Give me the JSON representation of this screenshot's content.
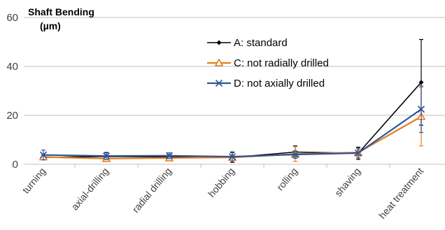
{
  "chart_data": {
    "type": "line",
    "title": "",
    "ylabel_line1": "Shaft Bending",
    "ylabel_line2": "(µm)",
    "xlabel": "",
    "ylim": [
      0,
      60
    ],
    "yticks": [
      0,
      20,
      40,
      60
    ],
    "grid": "horizontal",
    "legend_position": "upper-middle",
    "categories": [
      "turning",
      "axial-drilling",
      "radial drilling",
      "hobbing",
      "rolling",
      "shaving",
      "heat treatment"
    ],
    "series": [
      {
        "name": "A: standard",
        "color": "#000000",
        "marker": "diamond",
        "values": [
          2.8,
          3.2,
          3.0,
          2.8,
          5.0,
          4.5,
          33.5
        ],
        "error": [
          0.8,
          1.5,
          1.0,
          2.0,
          2.5,
          2.5,
          17.5
        ]
      },
      {
        "name": "C: not radially drilled",
        "color": "#E87D1E",
        "marker": "triangle-open",
        "values": [
          3.0,
          2.3,
          2.6,
          2.8,
          4.2,
          4.8,
          19.5
        ],
        "error": [
          1.2,
          1.0,
          1.0,
          1.0,
          3.0,
          1.5,
          12.0
        ]
      },
      {
        "name": "D: not axially drilled",
        "color": "#2F5597",
        "marker": "x",
        "values": [
          3.8,
          3.4,
          3.5,
          3.1,
          4.0,
          4.6,
          22.5
        ],
        "error": [
          2.0,
          1.5,
          1.2,
          2.0,
          1.5,
          2.0,
          9.5
        ]
      }
    ]
  }
}
